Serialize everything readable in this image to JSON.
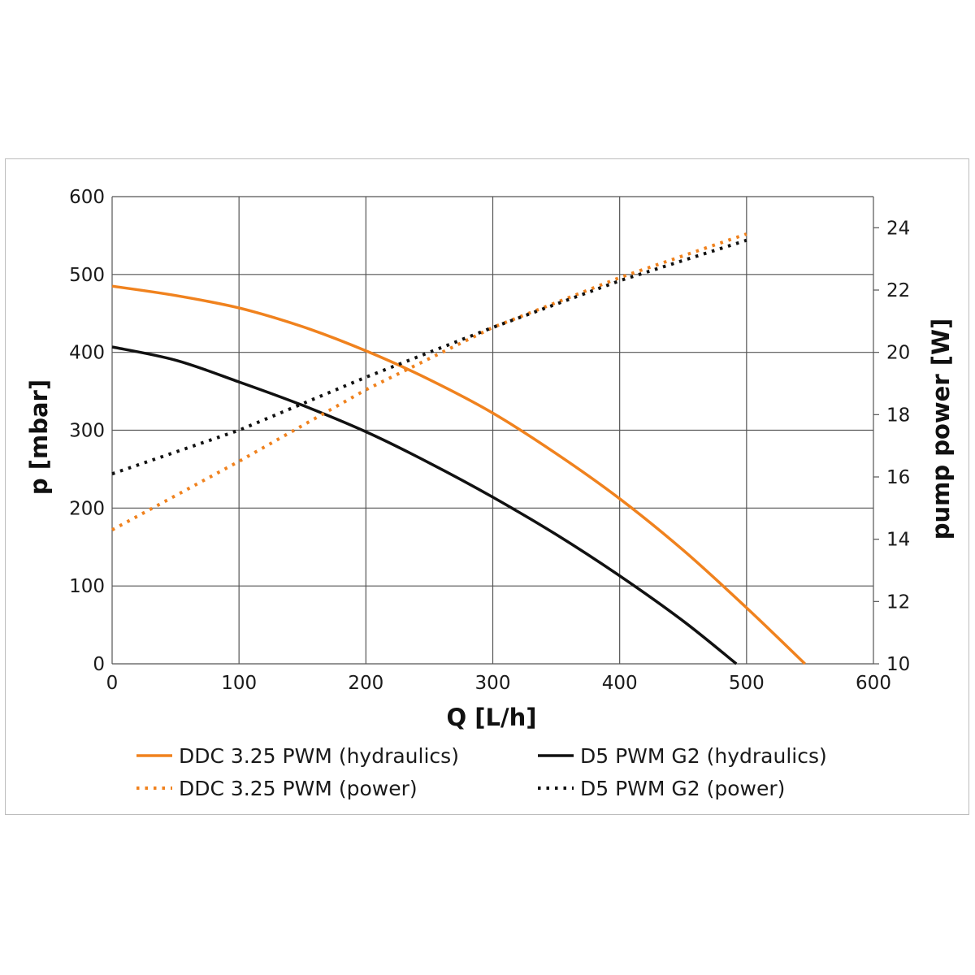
{
  "chart_data": {
    "type": "line",
    "xlabel": "Q [L/h]",
    "ylabel": "p [mbar]",
    "y2label": "pump power [W]",
    "xlim": [
      0,
      600
    ],
    "ylim": [
      0,
      600
    ],
    "y2lim": [
      10,
      25
    ],
    "x_ticks": [
      "0",
      "100",
      "200",
      "300",
      "400",
      "500",
      "600"
    ],
    "y_ticks": [
      "0",
      "100",
      "200",
      "300",
      "400",
      "500",
      "600"
    ],
    "y2_ticks": [
      "10",
      "12",
      "14",
      "16",
      "18",
      "20",
      "22",
      "24"
    ],
    "grid": true,
    "legend_position": "bottom",
    "series": [
      {
        "name": "DDC 3.25 PWM (hydraulics)",
        "axis": "left",
        "style": "solid",
        "color": "#f0821e",
        "x": [
          0,
          50,
          100,
          150,
          200,
          250,
          300,
          350,
          400,
          450,
          500,
          546
        ],
        "y": [
          485,
          473,
          457,
          433,
          402,
          365,
          322,
          270,
          212,
          146,
          72,
          0
        ]
      },
      {
        "name": "D5 PWM G2 (hydraulics)",
        "axis": "left",
        "style": "solid",
        "color": "#111111",
        "x": [
          0,
          50,
          100,
          150,
          200,
          250,
          300,
          350,
          400,
          450,
          492
        ],
        "y": [
          407,
          390,
          362,
          332,
          298,
          258,
          214,
          166,
          113,
          55,
          0
        ]
      },
      {
        "name": "DDC 3.25 PWM (power)",
        "axis": "right",
        "style": "dotted",
        "color": "#f0821e",
        "x": [
          0,
          100,
          200,
          300,
          400,
          500
        ],
        "y": [
          14.3,
          16.5,
          18.8,
          20.8,
          22.4,
          23.8
        ]
      },
      {
        "name": "D5 PWM G2 (power)",
        "axis": "right",
        "style": "dotted",
        "color": "#111111",
        "x": [
          0,
          100,
          200,
          300,
          400,
          500
        ],
        "y": [
          16.1,
          17.5,
          19.2,
          20.8,
          22.3,
          23.6
        ]
      }
    ]
  }
}
